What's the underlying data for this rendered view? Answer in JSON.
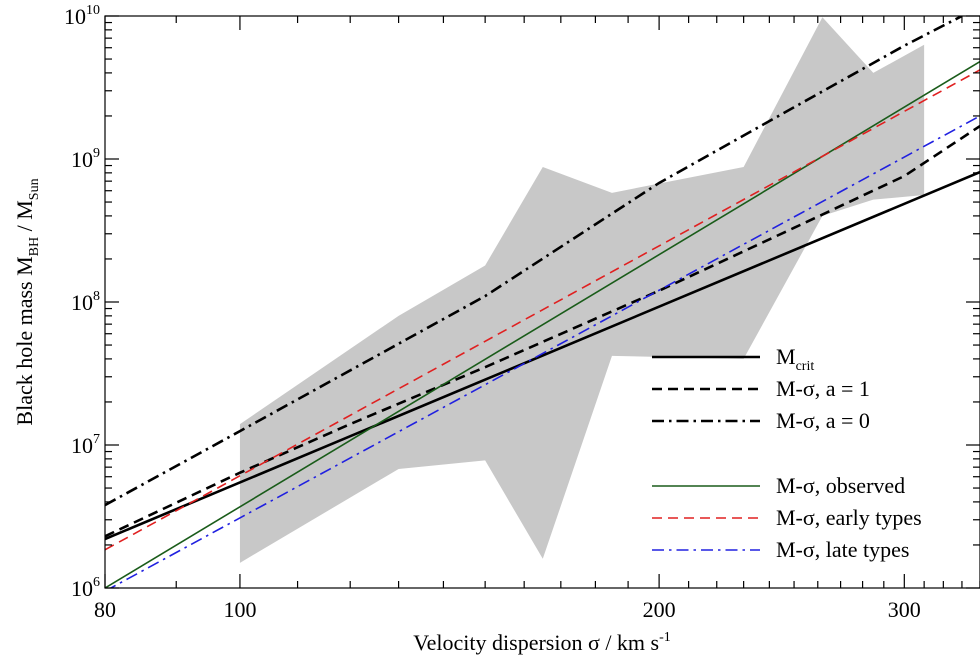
{
  "chart_data": {
    "type": "line",
    "title": "",
    "xlabel": {
      "main": "Velocity dispersion σ / km s",
      "sup": "-1"
    },
    "ylabel": {
      "prefix": "Black hole mass M",
      "sub1": "BH",
      "middle": " / M",
      "sub2": "Sun"
    },
    "x_scale": "log",
    "y_scale": "log",
    "xlim": [
      80,
      340
    ],
    "ylim": [
      1000000,
      10000000000
    ],
    "x_ticks": [
      {
        "value": 80,
        "label": "80"
      },
      {
        "value": 100,
        "label": "100"
      },
      {
        "value": 200,
        "label": "200"
      },
      {
        "value": 300,
        "label": "300"
      }
    ],
    "y_ticks": [
      {
        "value": 1000000,
        "base": "10",
        "exp": "6"
      },
      {
        "value": 10000000,
        "base": "10",
        "exp": "7"
      },
      {
        "value": 100000000,
        "base": "10",
        "exp": "8"
      },
      {
        "value": 1000000000,
        "base": "10",
        "exp": "9"
      },
      {
        "value": 10000000000,
        "base": "10",
        "exp": "10"
      }
    ],
    "grid": false,
    "legend_position": "lower-right",
    "band": {
      "color": "#c8c8c8",
      "x": [
        100,
        130,
        150,
        165,
        185,
        230,
        262,
        285,
        310
      ],
      "upper": [
        14000000,
        80000000,
        180000000,
        880000000,
        580000000,
        880000000,
        9800000000,
        4000000000,
        6300000000
      ],
      "lower": [
        1500000,
        6800000,
        7800000,
        1600000,
        42000000,
        40000000,
        400000000,
        520000000,
        560000000
      ]
    },
    "series": [
      {
        "name_main": "M",
        "name_sub": "crit",
        "color": "#000000",
        "dash": "solid",
        "width": 2.6,
        "gap_after": false,
        "x": [
          80,
          340
        ],
        "y": [
          2200000,
          810000000
        ]
      },
      {
        "name_main": "M-σ, a = 1",
        "name_sub": "",
        "color": "#000000",
        "dash": "dash",
        "width": 2.6,
        "gap_after": false,
        "x": [
          80,
          100,
          120,
          150,
          200,
          250,
          300,
          340
        ],
        "y": [
          2300000,
          6400000,
          14000000,
          35000000,
          120000000,
          330000000,
          760000000,
          1700000000
        ]
      },
      {
        "name_main": "M-σ, a = 0",
        "name_sub": "",
        "color": "#000000",
        "dash": "dashdot",
        "width": 2.6,
        "gap_after": true,
        "x": [
          80,
          100,
          150,
          200,
          250,
          300,
          330
        ],
        "y": [
          3800000,
          12500000,
          110000000,
          680000000,
          2300000000,
          6200000000,
          10000000000
        ]
      },
      {
        "name_main": "M-σ, observed",
        "name_sub": "",
        "color": "#1a5c1a",
        "dash": "solid",
        "width": 1.6,
        "gap_after": false,
        "x": [
          80,
          340
        ],
        "y": [
          1000000,
          4800000000
        ]
      },
      {
        "name_main": "M-σ, early types",
        "name_sub": "",
        "color": "#e02020",
        "dash": "dash",
        "width": 1.6,
        "gap_after": false,
        "x": [
          80,
          340
        ],
        "y": [
          1850000,
          4200000000
        ]
      },
      {
        "name_main": "M-σ, late types",
        "name_sub": "",
        "color": "#2020e0",
        "dash": "dashdot",
        "width": 1.6,
        "gap_after": false,
        "x": [
          80,
          340
        ],
        "y": [
          950000,
          2000000000
        ]
      }
    ]
  }
}
